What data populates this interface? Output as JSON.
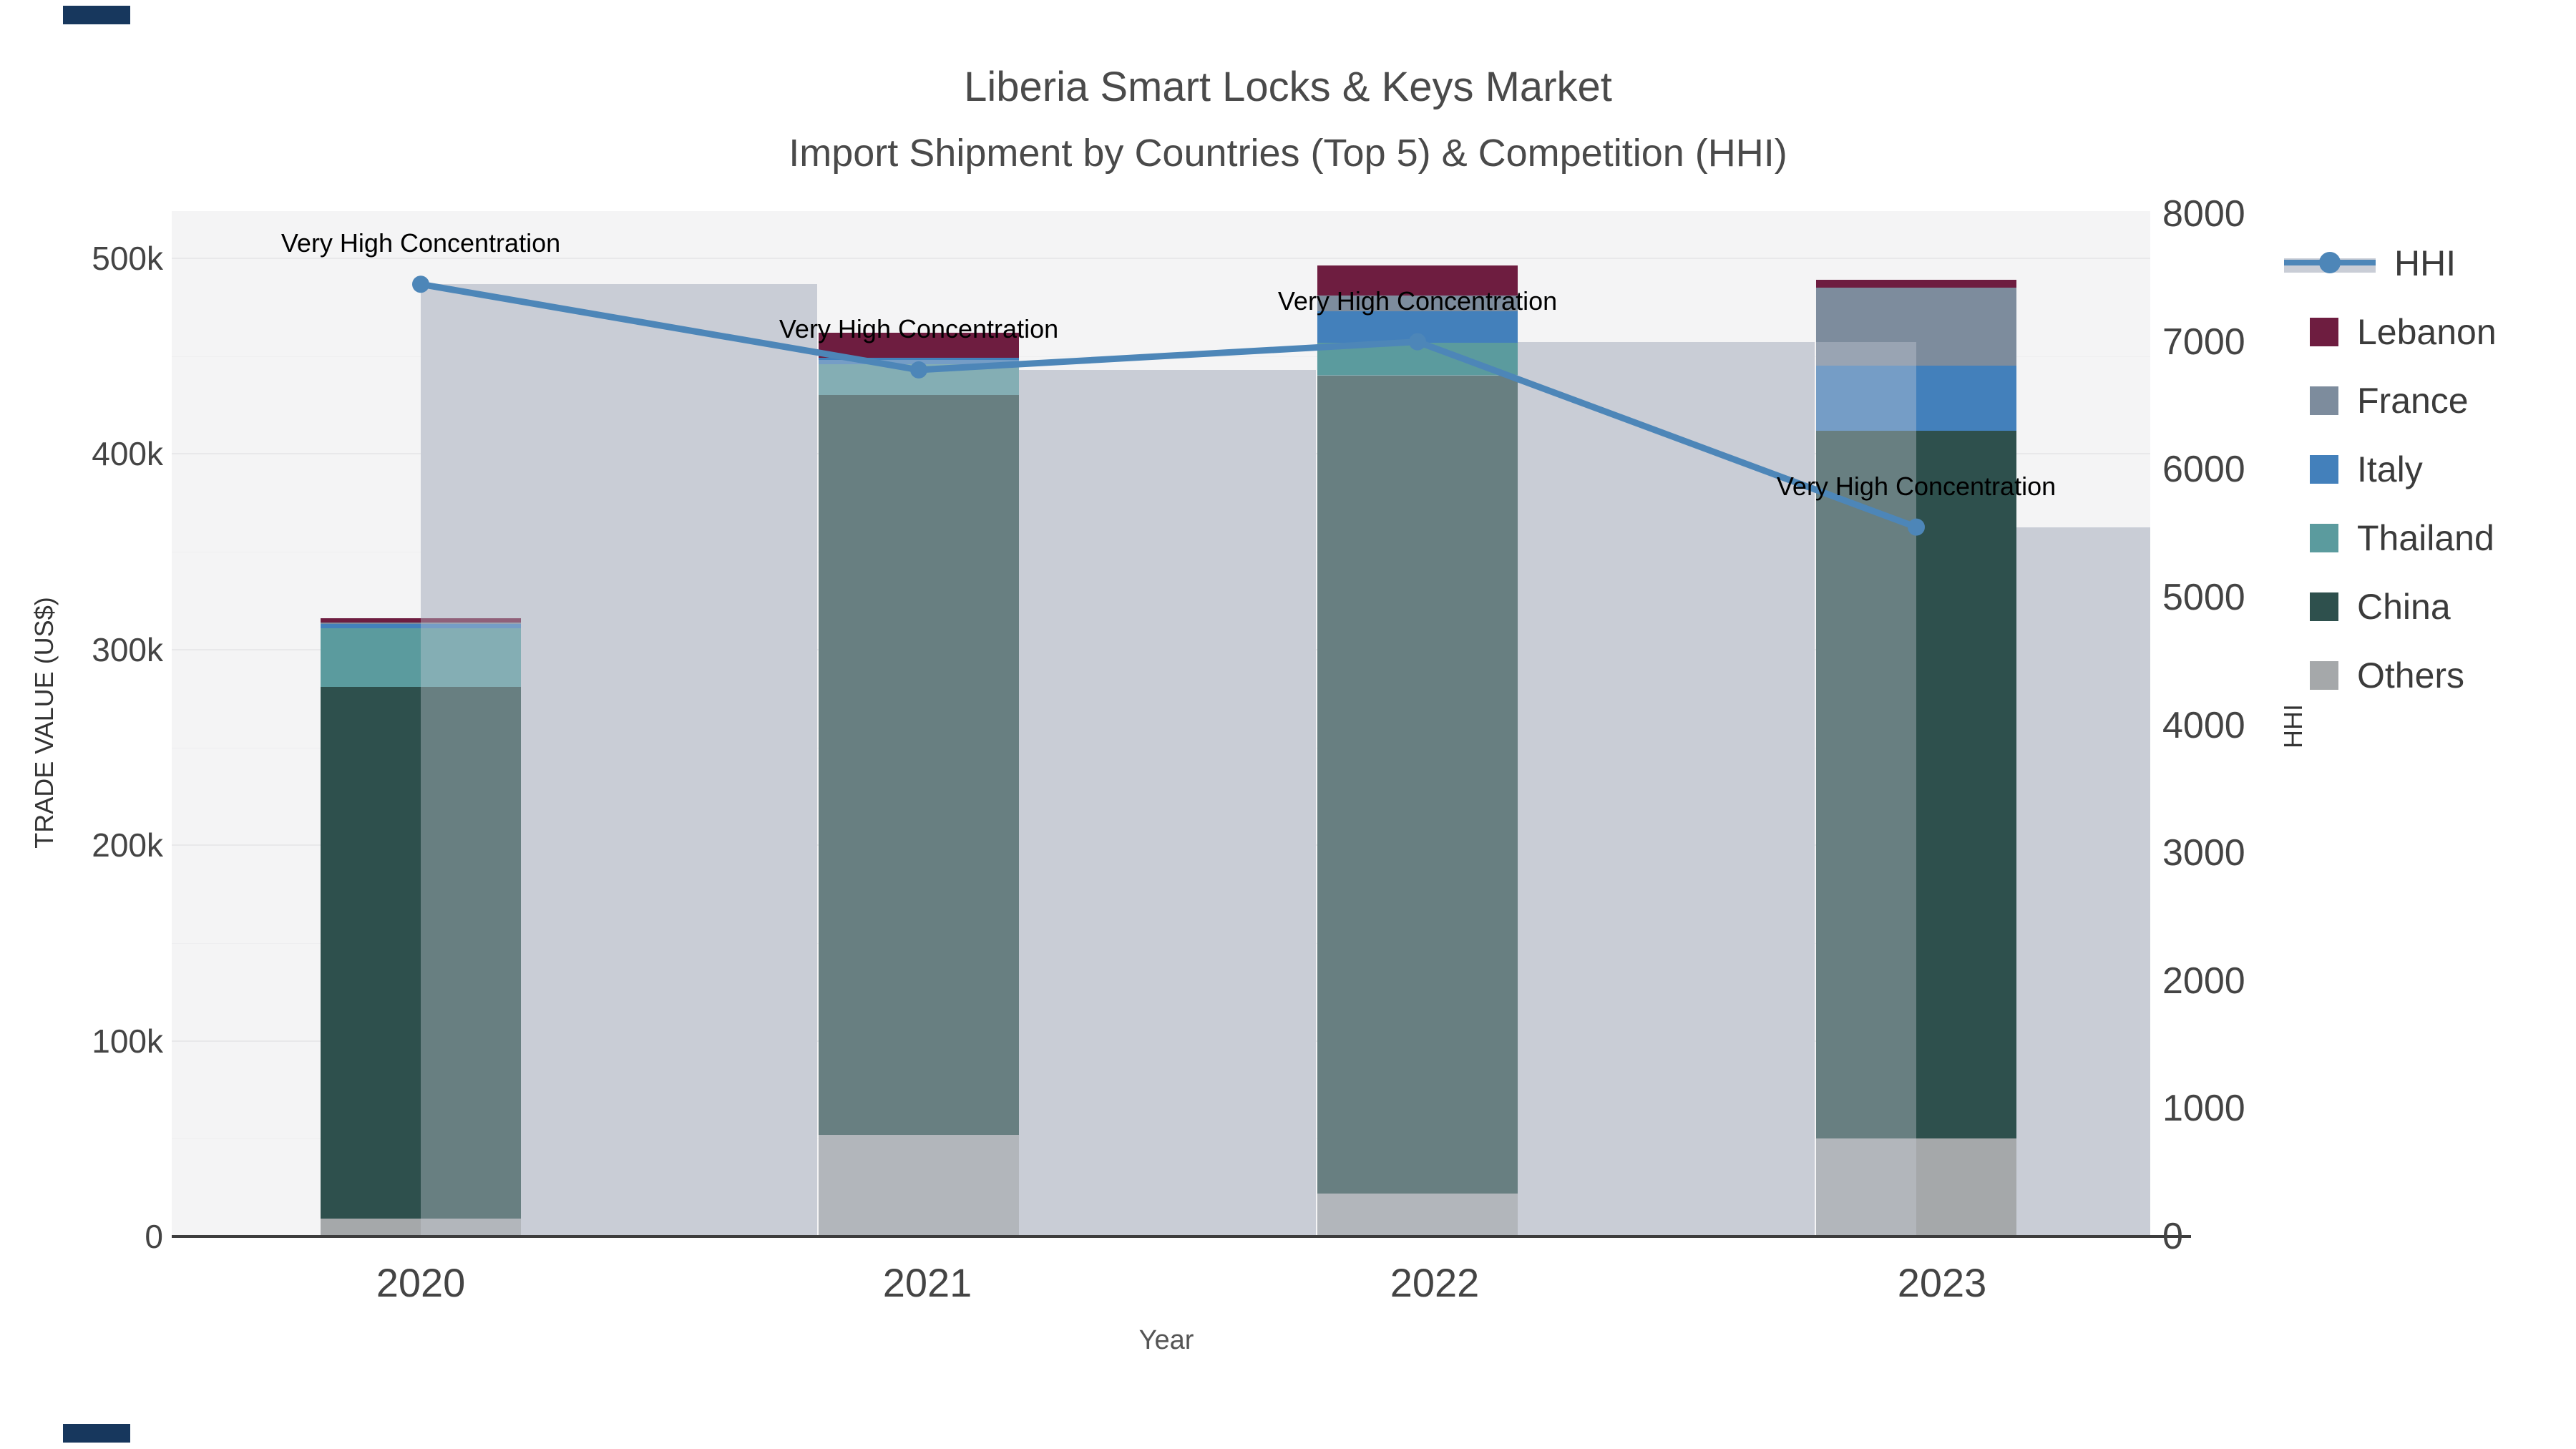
{
  "title": {
    "line1": "Liberia Smart Locks & Keys Market",
    "line2": "Import Shipment by Countries (Top 5) & Competition (HHI)"
  },
  "axes": {
    "left": {
      "title": "TRADE VALUE (US$)",
      "ticks": [
        {
          "label": "0",
          "value": 0
        },
        {
          "label": "100k",
          "value": 100000
        },
        {
          "label": "200k",
          "value": 200000
        },
        {
          "label": "300k",
          "value": 300000
        },
        {
          "label": "400k",
          "value": 400000
        },
        {
          "label": "500k",
          "value": 500000
        }
      ]
    },
    "right": {
      "title": "HHI",
      "ticks": [
        {
          "label": "0",
          "value": 0
        },
        {
          "label": "1000",
          "value": 1000
        },
        {
          "label": "2000",
          "value": 2000
        },
        {
          "label": "3000",
          "value": 3000
        },
        {
          "label": "4000",
          "value": 4000
        },
        {
          "label": "5000",
          "value": 5000
        },
        {
          "label": "6000",
          "value": 6000
        },
        {
          "label": "7000",
          "value": 7000
        },
        {
          "label": "8000",
          "value": 8000
        }
      ]
    },
    "x": {
      "title": "Year"
    }
  },
  "legend": {
    "items": [
      {
        "label": "HHI",
        "type": "line",
        "color": "#4d86b8"
      },
      {
        "label": "Lebanon",
        "type": "swatch",
        "color": "#6e1d40"
      },
      {
        "label": "France",
        "type": "swatch",
        "color": "#7d8c9d"
      },
      {
        "label": "Italy",
        "type": "swatch",
        "color": "#4380bb"
      },
      {
        "label": "Thailand",
        "type": "swatch",
        "color": "#5b9b9e"
      },
      {
        "label": "China",
        "type": "swatch",
        "color": "#2e504d"
      },
      {
        "label": "Others",
        "type": "swatch",
        "color": "#a5a8aa"
      }
    ]
  },
  "annotation_text": "Very High Concentration",
  "chart_data": {
    "type": "bar",
    "subtype": "stacked-with-line",
    "title": "Liberia Smart Locks & Keys Market — Import Shipment by Countries (Top 5) & Competition (HHI)",
    "xlabel": "Year",
    "ylabel_left": "TRADE VALUE (US$)",
    "ylabel_right": "HHI",
    "ylim_left": [
      0,
      525000
    ],
    "ylim_right": [
      0,
      8000
    ],
    "grid": true,
    "legend_position": "right",
    "categories": [
      "2020",
      "2021",
      "2022",
      "2023"
    ],
    "series": [
      {
        "name": "Others",
        "axis": "left",
        "values": [
          9000,
          52000,
          22000,
          50000
        ]
      },
      {
        "name": "China",
        "axis": "left",
        "values": [
          272000,
          378000,
          418000,
          362000
        ]
      },
      {
        "name": "Thailand",
        "axis": "left",
        "values": [
          30000,
          16000,
          17000,
          0
        ]
      },
      {
        "name": "Italy",
        "axis": "left",
        "values": [
          2000,
          3000,
          16000,
          33000
        ]
      },
      {
        "name": "France",
        "axis": "left",
        "values": [
          1000,
          0,
          8000,
          40000
        ]
      },
      {
        "name": "Lebanon",
        "axis": "left",
        "values": [
          2000,
          13000,
          15500,
          4000
        ]
      }
    ],
    "hhi": {
      "name": "HHI",
      "axis": "right",
      "values": [
        7450,
        6780,
        7000,
        5550
      ],
      "point_labels": [
        "Very High Concentration",
        "Very High Concentration",
        "Very High Concentration",
        "Very High Concentration"
      ]
    }
  }
}
